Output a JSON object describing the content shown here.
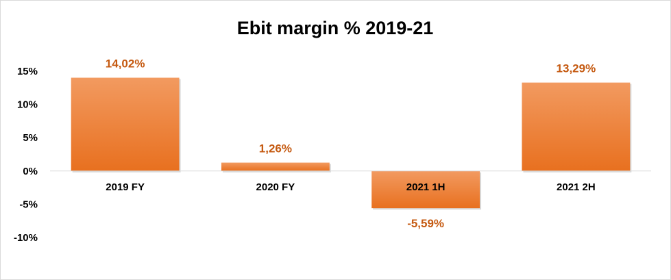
{
  "chart_data": {
    "type": "bar",
    "title": "Ebit margin % 2019-21",
    "xlabel": "",
    "ylabel": "",
    "categories": [
      "2019 FY",
      "2020 FY",
      "2021 1H",
      "2021 2H"
    ],
    "values": [
      14.02,
      1.26,
      -5.59,
      13.29
    ],
    "value_labels": [
      "14,02%",
      "1,26%",
      "-5,59%",
      "13,29%"
    ],
    "ylim": [
      -10,
      15
    ],
    "yticks": [
      15,
      10,
      5,
      0,
      -5,
      -10
    ],
    "ytick_labels": [
      "15%",
      "10%",
      "5%",
      "0%",
      "-5%",
      "-10%"
    ],
    "grid": false,
    "legend": "none",
    "colors": {
      "bar_top": "#f29a60",
      "bar_bottom": "#e8701f",
      "label": "#c55a11",
      "axis": "#d9d9d9"
    }
  }
}
